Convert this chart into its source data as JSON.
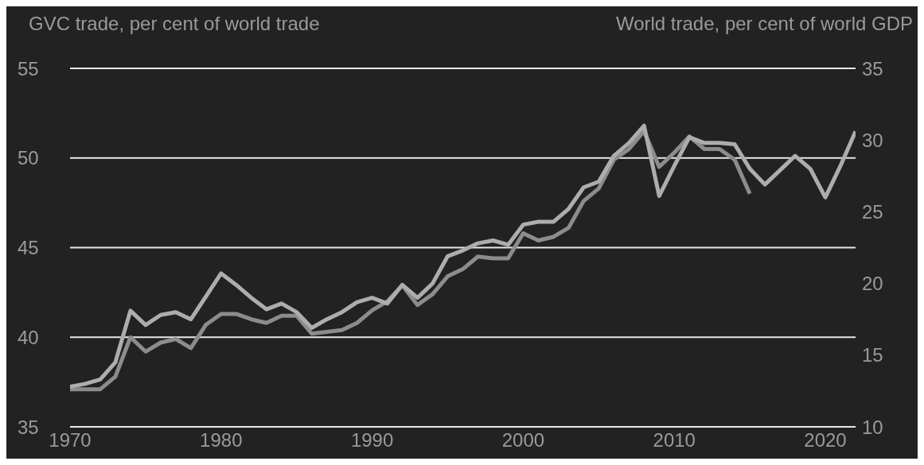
{
  "chart_data": {
    "type": "line",
    "ylabel": "GVC trade, per cent of world trade",
    "y2label": "World trade, per cent of world GDP",
    "xlim": [
      1970,
      2022
    ],
    "xticks": [
      1970,
      1980,
      1990,
      2000,
      2010,
      2020
    ],
    "ylim": [
      35,
      55
    ],
    "yticks": [
      35,
      40,
      45,
      50,
      55
    ],
    "y2lim": [
      10,
      35
    ],
    "y2ticks": [
      10,
      15,
      20,
      25,
      30,
      35
    ],
    "grid": "y",
    "legend": false,
    "marker": "none",
    "line_style": "solid",
    "series": [
      {
        "color": "#8c8c8c",
        "axis": "y",
        "x": [
          1970,
          1971,
          1972,
          1973,
          1974,
          1975,
          1976,
          1977,
          1978,
          1979,
          1980,
          1981,
          1982,
          1983,
          1984,
          1985,
          1986,
          1987,
          1988,
          1989,
          1990,
          1991,
          1992,
          1993,
          1994,
          1995,
          1996,
          1997,
          1998,
          1999,
          2000,
          2001,
          2002,
          2003,
          2004,
          2005,
          2006,
          2007,
          2008,
          2009,
          2010,
          2011,
          2012,
          2013,
          2014,
          2015
        ],
        "values": [
          37.1,
          37.1,
          37.1,
          37.8,
          40.0,
          39.2,
          39.7,
          39.9,
          39.4,
          40.7,
          41.3,
          41.3,
          41.0,
          40.8,
          41.2,
          41.2,
          40.2,
          40.3,
          40.4,
          40.8,
          41.5,
          42.0,
          42.9,
          41.8,
          42.4,
          43.4,
          43.8,
          44.5,
          44.4,
          44.4,
          45.8,
          45.4,
          45.6,
          46.1,
          47.6,
          48.3,
          49.9,
          50.5,
          51.5,
          49.5,
          50.3,
          51.2,
          50.5,
          50.5,
          49.9,
          48.0
        ]
      },
      {
        "color": "#adadad",
        "axis": "y2",
        "x": [
          1970,
          1971,
          1972,
          1973,
          1974,
          1975,
          1976,
          1977,
          1978,
          1979,
          1980,
          1981,
          1982,
          1983,
          1984,
          1985,
          1986,
          1987,
          1988,
          1989,
          1990,
          1991,
          1992,
          1993,
          1994,
          1995,
          1996,
          1997,
          1998,
          1999,
          2000,
          2001,
          2002,
          2003,
          2004,
          2005,
          2006,
          2007,
          2008,
          2009,
          2010,
          2011,
          2012,
          2013,
          2014,
          2015,
          2016,
          2017,
          2018,
          2019,
          2020,
          2021,
          2022
        ],
        "values": [
          12.8,
          13.0,
          13.3,
          14.5,
          18.1,
          17.1,
          17.8,
          18.0,
          17.5,
          19.1,
          20.7,
          19.9,
          19.0,
          18.2,
          18.6,
          18.0,
          16.9,
          17.5,
          18.0,
          18.7,
          19.0,
          18.6,
          19.9,
          19.0,
          20.0,
          21.9,
          22.3,
          22.8,
          23.0,
          22.7,
          24.1,
          24.3,
          24.3,
          25.2,
          26.7,
          27.1,
          28.9,
          29.8,
          31.0,
          26.1,
          28.2,
          30.2,
          29.8,
          29.8,
          29.7,
          28.0,
          26.9,
          27.9,
          28.9,
          28.0,
          26.0,
          28.2,
          30.6
        ]
      }
    ]
  }
}
